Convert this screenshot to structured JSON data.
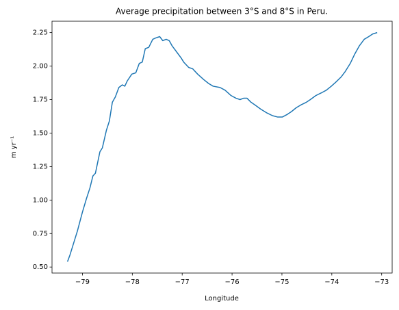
{
  "chart_data": {
    "type": "line",
    "title": "Average precipitation between 3°S and 8°S in Peru.",
    "xlabel": "Longitude",
    "ylabel": "m yr⁻¹",
    "x": [
      -79.3,
      -79.25,
      -79.15,
      -79.1,
      -79.0,
      -78.92,
      -78.85,
      -78.79,
      -78.74,
      -78.65,
      -78.6,
      -78.52,
      -78.46,
      -78.4,
      -78.34,
      -78.27,
      -78.2,
      -78.15,
      -78.1,
      -78.01,
      -77.93,
      -77.86,
      -77.8,
      -77.74,
      -77.67,
      -77.59,
      -77.53,
      -77.45,
      -77.39,
      -77.32,
      -77.26,
      -77.2,
      -77.1,
      -77.02,
      -76.97,
      -76.87,
      -76.79,
      -76.69,
      -76.57,
      -76.47,
      -76.38,
      -76.24,
      -76.14,
      -76.02,
      -75.92,
      -75.84,
      -75.77,
      -75.7,
      -75.62,
      -75.54,
      -75.43,
      -75.3,
      -75.19,
      -75.09,
      -74.99,
      -74.89,
      -74.81,
      -74.71,
      -74.62,
      -74.51,
      -74.43,
      -74.32,
      -74.21,
      -74.11,
      -74.01,
      -73.92,
      -73.81,
      -73.73,
      -73.63,
      -73.54,
      -73.45,
      -73.35,
      -73.26,
      -73.18,
      -73.09
    ],
    "series": [
      {
        "color": "#1f77b4",
        "values": [
          0.54,
          0.59,
          0.71,
          0.77,
          0.91,
          1.01,
          1.09,
          1.18,
          1.2,
          1.36,
          1.39,
          1.52,
          1.59,
          1.73,
          1.77,
          1.84,
          1.86,
          1.85,
          1.89,
          1.94,
          1.95,
          2.02,
          2.03,
          2.13,
          2.14,
          2.2,
          2.21,
          2.22,
          2.19,
          2.2,
          2.19,
          2.15,
          2.1,
          2.06,
          2.03,
          1.99,
          1.98,
          1.94,
          1.9,
          1.87,
          1.85,
          1.84,
          1.82,
          1.78,
          1.76,
          1.75,
          1.76,
          1.76,
          1.73,
          1.71,
          1.68,
          1.65,
          1.63,
          1.62,
          1.62,
          1.64,
          1.66,
          1.69,
          1.71,
          1.73,
          1.75,
          1.78,
          1.8,
          1.82,
          1.85,
          1.88,
          1.92,
          1.96,
          2.02,
          2.09,
          2.15,
          2.2,
          2.22,
          2.24,
          2.25
        ]
      }
    ],
    "xlim": [
      -79.61,
      -72.79
    ],
    "xticks": [
      {
        "value": -79,
        "label": "−79"
      },
      {
        "value": -78,
        "label": "−78"
      },
      {
        "value": -77,
        "label": "−77"
      },
      {
        "value": -76,
        "label": "−76"
      },
      {
        "value": -75,
        "label": "−75"
      },
      {
        "value": -74,
        "label": "−74"
      },
      {
        "value": -73,
        "label": "−73"
      }
    ],
    "ylim": [
      0.455,
      2.335
    ],
    "yticks": [
      {
        "value": 0.5,
        "label": "0.50"
      },
      0.75,
      {
        "value": 1,
        "label": "1.00"
      },
      1.25,
      {
        "value": 1.5,
        "label": "1.50"
      },
      1.75,
      {
        "value": 2,
        "label": "2.00"
      },
      2.25
    ],
    "grid": false
  }
}
